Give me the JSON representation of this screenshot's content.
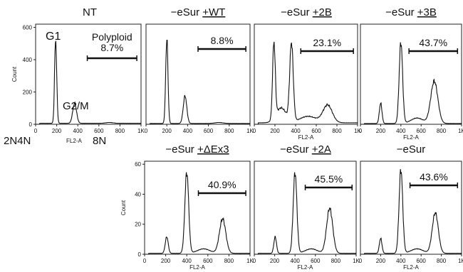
{
  "figure": {
    "bottom_label": "2N4N",
    "bottom_axis_label": "FL2-A",
    "bottom_label_right": "8N"
  },
  "chart_data": [
    {
      "type": "histogram",
      "title": "NT",
      "title_parts": [
        {
          "text": "NT",
          "underline": false
        }
      ],
      "xlabel": "",
      "ylabel": "Count",
      "xlim": [
        0,
        1000
      ],
      "ylim": [
        0,
        620
      ],
      "x_tick_labels": [
        "0",
        "200",
        "400",
        "600",
        "800",
        "1K"
      ],
      "y_tick_labels": [
        "0",
        "200",
        "400",
        "600"
      ],
      "annotations": [
        {
          "text": "G1"
        },
        {
          "text": "G2/M"
        }
      ],
      "gate": {
        "label_top": "Polyploid",
        "label": "8.7%",
        "from": 490,
        "to": 960
      },
      "peaks": [
        {
          "x": 190,
          "height": 520,
          "width": 10
        },
        {
          "x": 370,
          "height": 125,
          "width": 18
        },
        {
          "x": 700,
          "height": 5,
          "width": 35
        }
      ],
      "baseline": 6
    },
    {
      "type": "histogram",
      "title": "−eSur +WT",
      "title_parts": [
        {
          "text": "−eSur ",
          "underline": false
        },
        {
          "text": "+WT",
          "underline": true
        }
      ],
      "xlabel": "",
      "ylabel": "",
      "xlim": [
        0,
        1000
      ],
      "ylim": [
        0,
        620
      ],
      "x_tick_labels": [
        "0",
        "200",
        "400",
        "600",
        "800",
        "1K"
      ],
      "y_tick_labels": [],
      "annotations": [],
      "gate": {
        "label_top": "",
        "label": "8.8%",
        "from": 500,
        "to": 960
      },
      "peaks": [
        {
          "x": 200,
          "height": 520,
          "width": 11
        },
        {
          "x": 375,
          "height": 170,
          "width": 17
        },
        {
          "x": 700,
          "height": 6,
          "width": 40
        }
      ],
      "baseline": 5
    },
    {
      "type": "histogram",
      "title": "−eSur +2B",
      "title_parts": [
        {
          "text": "−eSur ",
          "underline": false
        },
        {
          "text": "+2B",
          "underline": true
        }
      ],
      "xlabel": "FL2-A",
      "ylabel": "",
      "xlim": [
        0,
        1000
      ],
      "ylim": [
        0,
        540
      ],
      "x_tick_labels": [
        "0",
        "200",
        "400",
        "600",
        "800",
        "1K"
      ],
      "y_tick_labels": [],
      "annotations": [],
      "gate": {
        "label_top": "",
        "label": "23.1%",
        "from": 450,
        "to": 960
      },
      "peaks": [
        {
          "x": 190,
          "height": 410,
          "width": 13
        },
        {
          "x": 360,
          "height": 420,
          "width": 17
        },
        {
          "x": 260,
          "height": 80,
          "width": 50
        },
        {
          "x": 710,
          "height": 95,
          "width": 45
        },
        {
          "x": 520,
          "height": 35,
          "width": 80
        }
      ],
      "baseline": 8
    },
    {
      "type": "histogram",
      "title": "−eSur +3B",
      "title_parts": [
        {
          "text": "−eSur ",
          "underline": false
        },
        {
          "text": "+3B",
          "underline": true
        }
      ],
      "xlabel": "FL2-A",
      "ylabel": "",
      "xlim": [
        0,
        1000
      ],
      "ylim": [
        0,
        640
      ],
      "x_tick_labels": [
        "0",
        "200",
        "400",
        "600",
        "800",
        "1K"
      ],
      "y_tick_labels": [],
      "annotations": [],
      "gate": {
        "label_top": "",
        "label": "43.7%",
        "from": 480,
        "to": 960
      },
      "peaks": [
        {
          "x": 200,
          "height": 130,
          "width": 13
        },
        {
          "x": 400,
          "height": 520,
          "width": 17
        },
        {
          "x": 730,
          "height": 270,
          "width": 35
        },
        {
          "x": 560,
          "height": 35,
          "width": 60
        }
      ],
      "baseline": 5
    },
    {
      "type": "histogram",
      "title": "−eSur +ΔEx3",
      "title_parts": [
        {
          "text": "−eSur ",
          "underline": false
        },
        {
          "text": "+ΔEx3",
          "underline": true
        }
      ],
      "xlabel": "FL2-A",
      "ylabel": "Count",
      "xlim": [
        0,
        1000
      ],
      "ylim": [
        0,
        62
      ],
      "x_tick_labels": [
        "0",
        "200",
        "400",
        "600",
        "800",
        "1K"
      ],
      "y_tick_labels": [
        "0",
        "20",
        "40",
        "60"
      ],
      "annotations": [],
      "gate": {
        "label_top": "",
        "label": "40.9%",
        "from": 510,
        "to": 960
      },
      "peaks": [
        {
          "x": 210,
          "height": 11,
          "width": 14
        },
        {
          "x": 400,
          "height": 54,
          "width": 18
        },
        {
          "x": 740,
          "height": 23,
          "width": 30
        },
        {
          "x": 560,
          "height": 3,
          "width": 60
        }
      ],
      "baseline": 0.6
    },
    {
      "type": "histogram",
      "title": "−eSur +2A",
      "title_parts": [
        {
          "text": "−eSur ",
          "underline": false
        },
        {
          "text": "+2A",
          "underline": true
        }
      ],
      "xlabel": "FL2-A",
      "ylabel": "",
      "xlim": [
        0,
        1000
      ],
      "ylim": [
        0,
        62
      ],
      "x_tick_labels": [
        "0",
        "200",
        "400",
        "600",
        "800",
        "1K"
      ],
      "y_tick_labels": [],
      "annotations": [],
      "gate": {
        "label_top": "",
        "label": "45.5%",
        "from": 500,
        "to": 960
      },
      "peaks": [
        {
          "x": 205,
          "height": 11,
          "width": 13
        },
        {
          "x": 400,
          "height": 54,
          "width": 18
        },
        {
          "x": 740,
          "height": 30,
          "width": 30
        },
        {
          "x": 560,
          "height": 3,
          "width": 60
        }
      ],
      "baseline": 0.6
    },
    {
      "type": "histogram",
      "title": "−eSur",
      "title_parts": [
        {
          "text": "−eSur",
          "underline": false
        }
      ],
      "xlabel": "FL2-A",
      "ylabel": "",
      "xlim": [
        0,
        1000
      ],
      "ylim": [
        0,
        62
      ],
      "x_tick_labels": [
        "0",
        "200",
        "400",
        "600",
        "800",
        "1K"
      ],
      "y_tick_labels": [],
      "annotations": [],
      "gate": {
        "label_top": "",
        "label": "43.6%",
        "from": 490,
        "to": 960
      },
      "peaks": [
        {
          "x": 200,
          "height": 10,
          "width": 13
        },
        {
          "x": 400,
          "height": 56,
          "width": 18
        },
        {
          "x": 740,
          "height": 27,
          "width": 30
        },
        {
          "x": 560,
          "height": 3,
          "width": 60
        }
      ],
      "baseline": 0.6
    }
  ]
}
